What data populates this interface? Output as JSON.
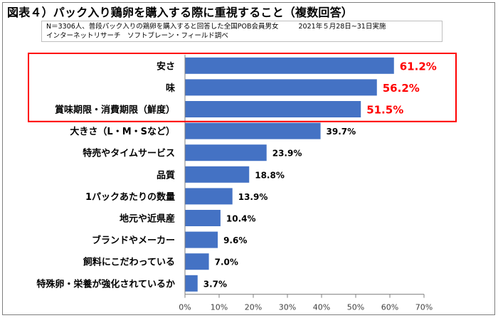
{
  "title": "図表４）パック入り鶏卵を購入する際に重視すること（複数回答）",
  "note": {
    "sample": "N＝3306人、普段パック入りの鶏卵を購入すると回答した全国POB会員男女",
    "period": "2021年５月28日~31日実施",
    "method": "インターネットリサーチ　ソフトブレーン・フィールド調べ"
  },
  "chart_data": {
    "type": "bar",
    "orientation": "horizontal",
    "title": "図表４）パック入り鶏卵を購入する際に重視すること（複数回答）",
    "categories": [
      "安さ",
      "味",
      "賞味期限・消費期限（鮮度）",
      "大きさ（L・M・Sなど）",
      "特売やタイムサービス",
      "品質",
      "1パックあたりの数量",
      "地元や近県産",
      "ブランドやメーカー",
      "飼料にこだわっている",
      "特殊卵・栄養が強化されているか"
    ],
    "values": [
      61.2,
      56.2,
      51.5,
      39.7,
      23.9,
      18.8,
      13.9,
      10.4,
      9.6,
      7.0,
      3.7
    ],
    "value_labels": [
      "61.2%",
      "56.2%",
      "51.5%",
      "39.7%",
      "23.9%",
      "18.8%",
      "13.9%",
      "10.4%",
      "9.6%",
      "7.0%",
      "3.7%"
    ],
    "highlight_count": 3,
    "xlim": [
      0,
      70
    ],
    "xticks": [
      "0%",
      "10%",
      "20%",
      "30%",
      "40%",
      "50%",
      "60%",
      "70%"
    ],
    "xlabel": "",
    "ylabel": "",
    "grid": false,
    "colors": {
      "bar": "#4472c4",
      "highlight_label": "#ff0000",
      "highlight_box": "#ff0000",
      "axis": "#7f7f7f",
      "text": "#000000"
    }
  }
}
